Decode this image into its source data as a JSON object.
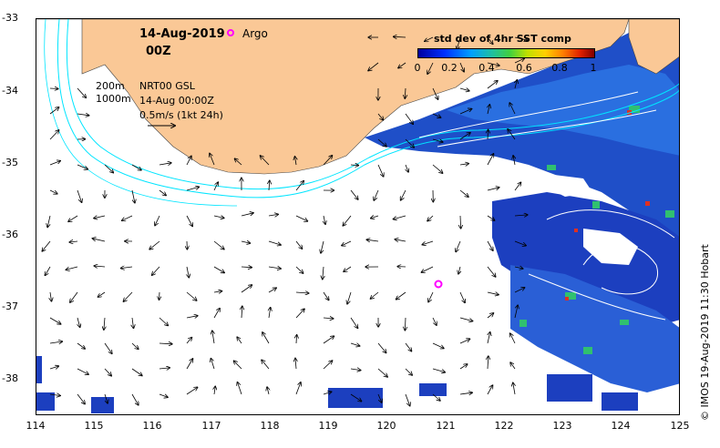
{
  "map": {
    "title_date": "14-Aug-2019",
    "title_hour": "00Z",
    "argo_label": "Argo",
    "legend_lines": [
      "200m",
      "1000m"
    ],
    "product_lines": [
      "NRT00 GSL",
      "14-Aug 00:00Z",
      "0.5m/s (1kt 24h)"
    ],
    "colorbar": {
      "title": "std dev of 4hr SST comp",
      "ticks": [
        "0",
        "0.2",
        "0.4",
        "0.6",
        "0.8",
        "1"
      ],
      "range": [
        0,
        1
      ]
    },
    "y_ticks": [
      "-33",
      "-34",
      "-35",
      "-36",
      "-37",
      "-38"
    ],
    "x_ticks": [
      "114",
      "115",
      "116",
      "117",
      "118",
      "119",
      "120",
      "121",
      "122",
      "123",
      "124",
      "125"
    ],
    "credit": "© IMOS 19-Aug-2019 11:30 Hobart",
    "extent": {
      "lon": [
        114,
        125
      ],
      "lat": [
        -38.5,
        -33
      ]
    },
    "argo_float": {
      "lon": 120.8,
      "lat": -36.65
    },
    "colors": {
      "land": "#fac896",
      "isobath": "#00e5ff",
      "argo": "#ff00ff",
      "sst_low": "#0000a0",
      "sst_high": "#800000"
    },
    "icons": [
      "current-arrow",
      "argo-float-marker"
    ]
  }
}
